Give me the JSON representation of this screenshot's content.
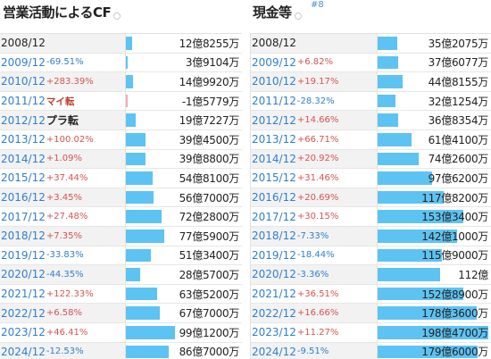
{
  "left": {
    "title": "営業活動によるCF",
    "rows": [
      {
        "year": "2008/12",
        "change": "",
        "dir": "base",
        "value": "12億8255万",
        "amount": 12.8255
      },
      {
        "year": "2009/12",
        "change": "-69.51%",
        "dir": "down",
        "value": "3億9104万",
        "amount": 3.9104
      },
      {
        "year": "2010/12",
        "change": "+283.39%",
        "dir": "up",
        "value": "14億9920万",
        "amount": 14.992
      },
      {
        "year": "2011/12",
        "change": "マイ転",
        "dir": "flip-up",
        "value": "-1億5779万",
        "amount": -1.5779
      },
      {
        "year": "2012/12",
        "change": "プラ転",
        "dir": "flip-base",
        "value": "19億7227万",
        "amount": 19.7227
      },
      {
        "year": "2013/12",
        "change": "+100.02%",
        "dir": "up",
        "value": "39億4500万",
        "amount": 39.45
      },
      {
        "year": "2014/12",
        "change": "+1.09%",
        "dir": "up",
        "value": "39億8800万",
        "amount": 39.88
      },
      {
        "year": "2015/12",
        "change": "+37.44%",
        "dir": "up",
        "value": "54億8100万",
        "amount": 54.81
      },
      {
        "year": "2016/12",
        "change": "+3.45%",
        "dir": "up",
        "value": "56億7000万",
        "amount": 56.7
      },
      {
        "year": "2017/12",
        "change": "+27.48%",
        "dir": "up",
        "value": "72億2800万",
        "amount": 72.28
      },
      {
        "year": "2018/12",
        "change": "+7.35%",
        "dir": "up",
        "value": "77億5900万",
        "amount": 77.59
      },
      {
        "year": "2019/12",
        "change": "-33.83%",
        "dir": "down",
        "value": "51億3400万",
        "amount": 51.34
      },
      {
        "year": "2020/12",
        "change": "-44.35%",
        "dir": "down",
        "value": "28億5700万",
        "amount": 28.57
      },
      {
        "year": "2021/12",
        "change": "+122.33%",
        "dir": "up",
        "value": "63億5200万",
        "amount": 63.52
      },
      {
        "year": "2022/12",
        "change": "+6.58%",
        "dir": "up",
        "value": "67億7000万",
        "amount": 67.7
      },
      {
        "year": "2023/12",
        "change": "+46.41%",
        "dir": "up",
        "value": "99億1200万",
        "amount": 99.12
      },
      {
        "year": "2024/12",
        "change": "-12.53%",
        "dir": "down",
        "value": "86億7000万",
        "amount": 86.7
      }
    ]
  },
  "right": {
    "title": "現金等",
    "anchor": "#8",
    "rows": [
      {
        "year": "2008/12",
        "change": "",
        "dir": "base",
        "value": "35億2075万",
        "amount": 35.2075
      },
      {
        "year": "2009/12",
        "change": "+6.82%",
        "dir": "up",
        "value": "37億6077万",
        "amount": 37.6077
      },
      {
        "year": "2010/12",
        "change": "+19.17%",
        "dir": "up",
        "value": "44億8155万",
        "amount": 44.8155
      },
      {
        "year": "2011/12",
        "change": "-28.32%",
        "dir": "down",
        "value": "32億1254万",
        "amount": 32.1254
      },
      {
        "year": "2012/12",
        "change": "+14.66%",
        "dir": "up",
        "value": "36億8354万",
        "amount": 36.8354
      },
      {
        "year": "2013/12",
        "change": "+66.71%",
        "dir": "up",
        "value": "61億4100万",
        "amount": 61.41
      },
      {
        "year": "2014/12",
        "change": "+20.92%",
        "dir": "up",
        "value": "74億2600万",
        "amount": 74.26
      },
      {
        "year": "2015/12",
        "change": "+31.46%",
        "dir": "up",
        "value": "97億6200万",
        "amount": 97.62
      },
      {
        "year": "2016/12",
        "change": "+20.69%",
        "dir": "up",
        "value": "117億8200万",
        "amount": 117.82
      },
      {
        "year": "2017/12",
        "change": "+30.15%",
        "dir": "up",
        "value": "153億3400万",
        "amount": 153.34
      },
      {
        "year": "2018/12",
        "change": "-7.33%",
        "dir": "down",
        "value": "142億1000万",
        "amount": 142.1
      },
      {
        "year": "2019/12",
        "change": "-18.44%",
        "dir": "down",
        "value": "115億9000万",
        "amount": 115.9
      },
      {
        "year": "2020/12",
        "change": "-3.36%",
        "dir": "down",
        "value": "112億",
        "amount": 112.0
      },
      {
        "year": "2021/12",
        "change": "+36.51%",
        "dir": "up",
        "value": "152億8900万",
        "amount": 152.89
      },
      {
        "year": "2022/12",
        "change": "+16.66%",
        "dir": "up",
        "value": "178億3600万",
        "amount": 178.36
      },
      {
        "year": "2023/12",
        "change": "+11.27%",
        "dir": "up",
        "value": "198億4700万",
        "amount": 198.47
      },
      {
        "year": "2024/12",
        "change": "-9.51%",
        "dir": "down",
        "value": "179億6000万",
        "amount": 179.6
      }
    ]
  }
}
